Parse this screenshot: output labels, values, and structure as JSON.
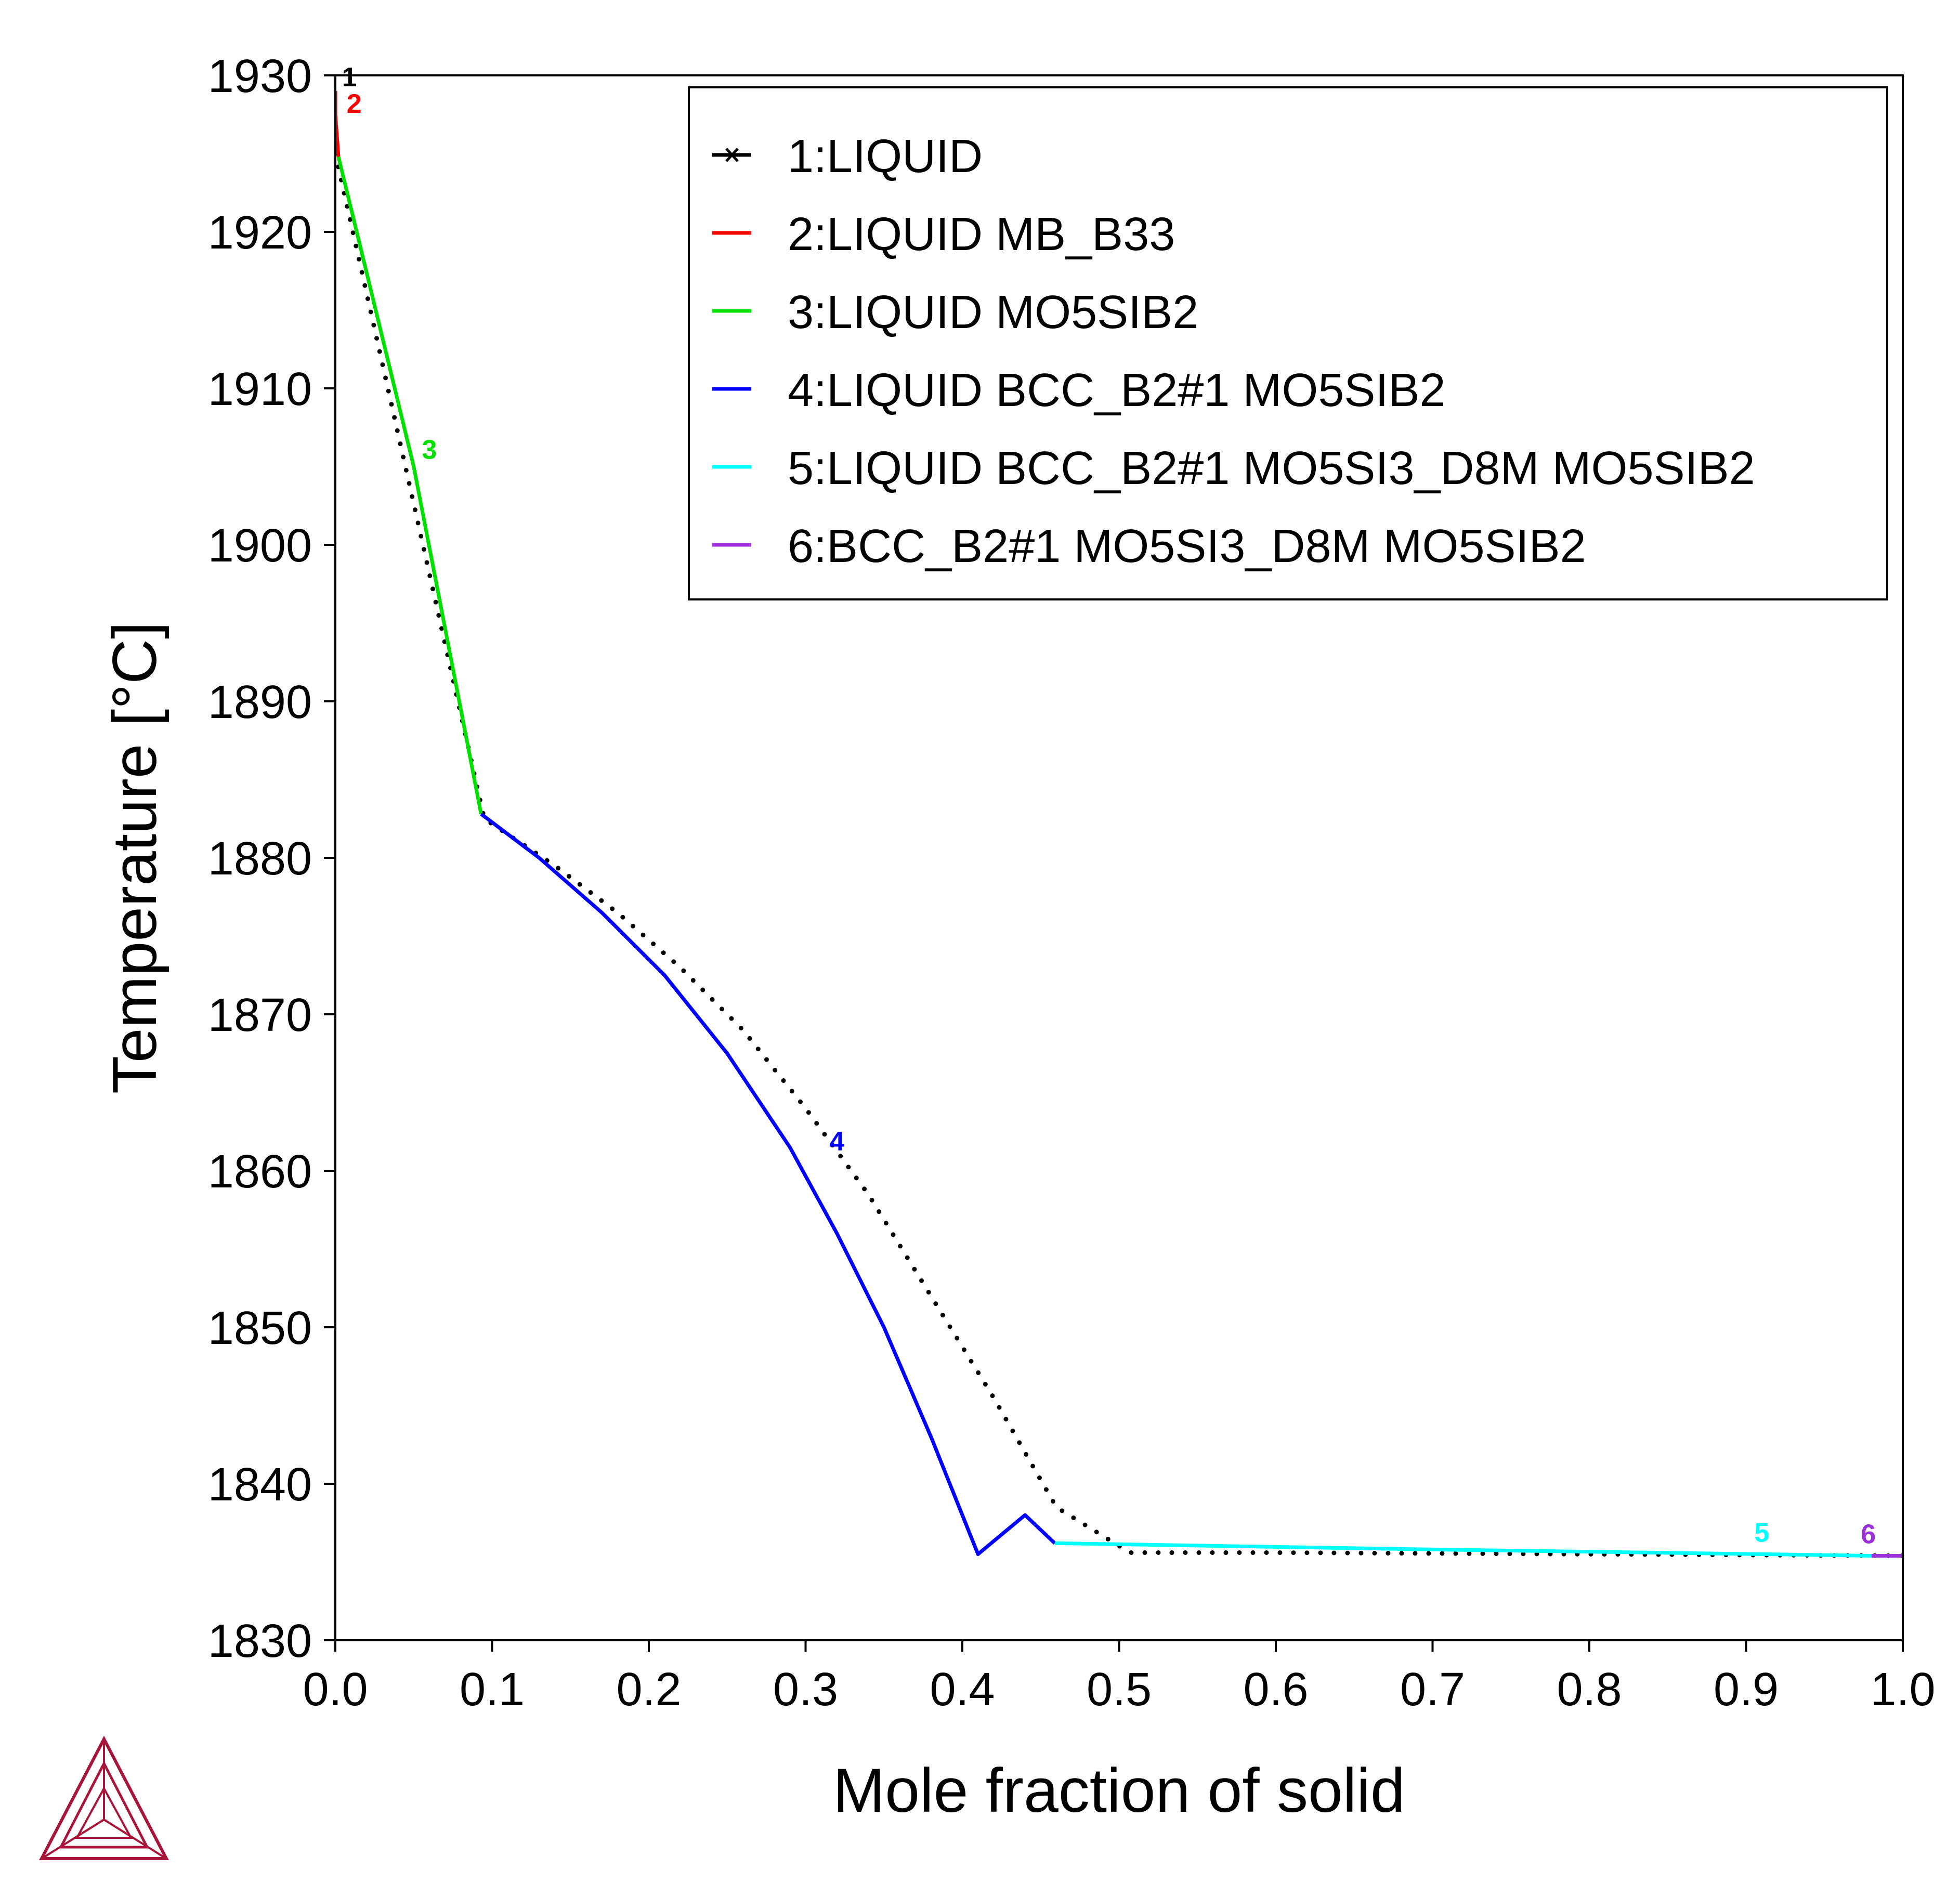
{
  "chart_data": {
    "type": "line",
    "xlabel": "Mole fraction of solid",
    "ylabel": "Temperature [°C]",
    "xlim": [
      0.0,
      1.0
    ],
    "ylim": [
      1830,
      1930
    ],
    "x_ticks": [
      "0.0",
      "0.1",
      "0.2",
      "0.3",
      "0.4",
      "0.5",
      "0.6",
      "0.7",
      "0.8",
      "0.9",
      "1.0"
    ],
    "y_ticks": [
      "1830",
      "1840",
      "1850",
      "1860",
      "1870",
      "1880",
      "1890",
      "1900",
      "1910",
      "1920",
      "1930"
    ],
    "grid": false,
    "legend_placement": "top-right",
    "series": [
      {
        "name": "1:LIQUID",
        "label": "1",
        "color": "#000000",
        "style": "solid-with-marker",
        "x": [
          0.0,
          0.0
        ],
        "y": [
          1929.0,
          1928.5
        ]
      },
      {
        "name": "2:LIQUID MB_B33",
        "label": "2",
        "color": "#ff0000",
        "style": "solid",
        "x": [
          0.0,
          0.0,
          0.002
        ],
        "y": [
          1929.0,
          1927.5,
          1924.8
        ]
      },
      {
        "name": "3:LIQUID MO5SIB2",
        "label": "3",
        "color": "#00e000",
        "style": "solid",
        "x": [
          0.002,
          0.05,
          0.093
        ],
        "y": [
          1924.8,
          1905.0,
          1882.8
        ]
      },
      {
        "name": "4:LIQUID BCC_B2#1 MO5SIB2",
        "label": "4",
        "color": "#0000ff",
        "style": "solid",
        "x": [
          0.093,
          0.13,
          0.17,
          0.21,
          0.25,
          0.29,
          0.32,
          0.35,
          0.38,
          0.41,
          0.44,
          0.459
        ],
        "y": [
          1882.8,
          1880.0,
          1876.5,
          1872.5,
          1867.5,
          1861.5,
          1856.0,
          1850.0,
          1843.0,
          1835.5,
          1838.0,
          1836.2
        ]
      },
      {
        "name": "5:LIQUID BCC_B2#1 MO5SI3_D8M MO5SIB2",
        "label": "5",
        "color": "#00ffff",
        "style": "solid",
        "x": [
          0.459,
          0.7,
          0.98
        ],
        "y": [
          1836.2,
          1835.8,
          1835.4
        ]
      },
      {
        "name": "6:BCC_B2#1 MO5SI3_D8M MO5SIB2",
        "label": "6",
        "color": "#9b30d9",
        "style": "solid",
        "x": [
          0.98,
          1.0
        ],
        "y": [
          1835.4,
          1835.4
        ]
      }
    ],
    "dotted_reference": {
      "color": "#000000",
      "style": "dotted",
      "x": [
        0.0,
        0.095,
        0.14,
        0.18,
        0.22,
        0.26,
        0.3,
        0.34,
        0.38,
        0.42,
        0.46,
        0.507,
        0.6,
        0.8,
        1.0
      ],
      "y": [
        1925.0,
        1882.5,
        1879.5,
        1876.5,
        1873.0,
        1869.0,
        1864.0,
        1858.5,
        1852.0,
        1845.5,
        1838.5,
        1835.6,
        1835.6,
        1835.5,
        1835.4
      ]
    }
  }
}
